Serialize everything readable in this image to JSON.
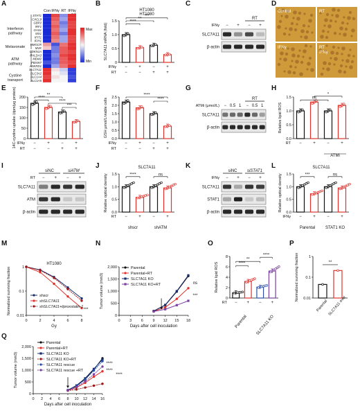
{
  "panels": {
    "A": {
      "letter": "A",
      "col_headers": [
        "Con",
        "IFNγ",
        "RT",
        "IFNγ\n+ RT"
      ],
      "groups": [
        "Interferon pathway",
        "Melavonate",
        "ATM pathway",
        "Cystine transport"
      ],
      "genes": [
        "STAT1",
        "CXCL9",
        "GBP2",
        "IRF1",
        "OAS1",
        "MX1",
        "IFIT1",
        "IFIH1",
        "HMGCR",
        "MVK",
        "CDKN1A",
        "PHLDA3",
        "MDM2",
        "FBXW7",
        "ANKRD1",
        "SLC7A11",
        "SLC3A2",
        "SLC1A4",
        "SLC1A5"
      ],
      "legend_max": "Max",
      "legend_min": "Min",
      "heat": [
        [
          0,
          0.9,
          0.25,
          0.95
        ],
        [
          0,
          0.85,
          0.3,
          0.95
        ],
        [
          0,
          0.8,
          0.2,
          0.9
        ],
        [
          0,
          0.85,
          0.25,
          0.9
        ],
        [
          0,
          0.8,
          0.3,
          0.95
        ],
        [
          0,
          0.85,
          0.2,
          0.95
        ],
        [
          0,
          0.8,
          0.3,
          0.9
        ],
        [
          0,
          0.75,
          0.3,
          0.9
        ],
        [
          0.7,
          0.1,
          0.8,
          0.95
        ],
        [
          0.6,
          0.2,
          0.85,
          0.95
        ],
        [
          0,
          0.2,
          0.85,
          0.9
        ],
        [
          0,
          0.25,
          0.9,
          0.95
        ],
        [
          0,
          0.2,
          0.85,
          0.95
        ],
        [
          0.1,
          0.2,
          0.85,
          0.9
        ],
        [
          0,
          0.3,
          0.8,
          0.95
        ],
        [
          0.95,
          0.55,
          0.4,
          0.05
        ],
        [
          0.95,
          0.5,
          0.45,
          0.05
        ],
        [
          0.9,
          0.55,
          0.5,
          0.1
        ],
        [
          0.95,
          0.5,
          0.5,
          0.05
        ]
      ]
    },
    "B": {
      "letter": "B",
      "title": "HT1080",
      "ylabel": "SLC7A11 mRNA (fold)",
      "yticks": [
        "0",
        "0.5",
        "1.0",
        "1.5"
      ],
      "rows": [
        {
          "label": "IFNγ",
          "values": [
            "−",
            "+",
            "−",
            "+"
          ]
        },
        {
          "label": "RT",
          "values": [
            "−",
            "−",
            "+",
            "+"
          ]
        }
      ],
      "sig": [
        "****",
        "**",
        "***"
      ],
      "values": [
        1.0,
        0.53,
        0.62,
        0.28
      ]
    },
    "C": {
      "letter": "C",
      "treat_label": "IFNγ",
      "treat": [
        "−",
        "+",
        "−",
        "+"
      ],
      "group": "RT",
      "bands": [
        "SLC7A11",
        "β-actin"
      ]
    },
    "D": {
      "letter": "D",
      "labels": [
        "Control",
        "RT",
        "IFNγ",
        "RT\nIFNγ"
      ]
    },
    "E": {
      "letter": "E",
      "ylabel": "14C-cystine uptake (dpm/μg protein)",
      "yticks": [
        "0",
        "50",
        "100",
        "150",
        "200"
      ],
      "rows": [
        {
          "label": "IFNγ",
          "values": [
            "−",
            "+",
            "−",
            "+"
          ]
        },
        {
          "label": "RT",
          "values": [
            "−",
            "−",
            "+",
            "+"
          ]
        }
      ],
      "sig": [
        "****",
        "**",
        "****",
        "***"
      ],
      "values": [
        170,
        150,
        128,
        82
      ]
    },
    "F": {
      "letter": "F",
      "ylabel": "GSH μmol/L/viable cells",
      "yticks": [
        "0.0",
        "0.5",
        "1.0",
        "1.5",
        "2.0",
        "2.5"
      ],
      "rows": [
        {
          "label": "IFNγ",
          "values": [
            "−",
            "+",
            "−",
            "+"
          ]
        },
        {
          "label": "RT",
          "values": [
            "−",
            "−",
            "+",
            "+"
          ]
        }
      ],
      "sig": [
        "****",
        "****"
      ],
      "values": [
        2.2,
        1.85,
        1.5,
        0.75
      ]
    },
    "G": {
      "letter": "G",
      "treat_label": "ATMi (μmol/L)",
      "treat": [
        "−",
        "0.5",
        "1",
        "−",
        "0.5",
        "1"
      ],
      "group": "RT",
      "bands": [
        "SLC7A11",
        "β-actin"
      ]
    },
    "H": {
      "letter": "H",
      "ylabel": "Relative lipid ROS",
      "yticks": [
        "0.0",
        "0.5",
        "1.0",
        "1.5"
      ],
      "rows": [
        {
          "label": "RT",
          "values": [
            "−",
            "+",
            "−",
            "+"
          ]
        }
      ],
      "group": "ATMi",
      "sig": [
        "ns",
        "*"
      ],
      "values": [
        1.0,
        1.32,
        1.0,
        1.2
      ]
    },
    "I": {
      "letter": "I",
      "treat_label": "RT",
      "treat": [
        "−",
        "+",
        "−",
        "+"
      ],
      "groups": [
        "siNC",
        "siATM"
      ],
      "bands": [
        "SLC7A11",
        "ATM",
        "β-actin"
      ]
    },
    "J": {
      "letter": "J",
      "title": "SLC7A11",
      "ylabel": "Relative optical density",
      "yticks": [
        "0.0",
        "0.5",
        "1.0",
        "1.5"
      ],
      "rows": [
        {
          "label": "RT",
          "values": [
            "−",
            "+",
            "−",
            "+"
          ]
        }
      ],
      "groups": [
        "shscr",
        "shATM"
      ],
      "sig": [
        "****",
        "ns"
      ],
      "values": [
        1.0,
        0.58,
        1.0,
        0.95
      ]
    },
    "K": {
      "letter": "K",
      "treat_label": "IFNγ",
      "treat": [
        "−",
        "+",
        "−",
        "+"
      ],
      "groups": [
        "siNC",
        "siSTAT1"
      ],
      "bands": [
        "SLC7A11",
        "STAT1",
        "β-actin"
      ]
    },
    "L": {
      "letter": "L",
      "title": "SLC7A11",
      "ylabel": "Relative optical density",
      "yticks": [
        "0.0",
        "0.5",
        "1.0",
        "1.5"
      ],
      "rows": [
        {
          "label": "IFNγ",
          "values": [
            "−",
            "+",
            "−",
            "+"
          ]
        }
      ],
      "groups": [
        "Parental",
        "STAT1 KO"
      ],
      "sig": [
        "***",
        "ns"
      ],
      "values": [
        1.0,
        0.72,
        1.0,
        0.95
      ]
    },
    "M": {
      "letter": "M",
      "title": "HT1080",
      "ylabel": "Normalized surviving fraction",
      "xlabel": "Gy",
      "xticks": [
        "0",
        "2",
        "4",
        "6",
        "8"
      ],
      "yticks": [
        "0.01",
        "0.1",
        "1"
      ],
      "sig": "***",
      "series": [
        {
          "name": "shscr",
          "values": [
            1,
            0.75,
            0.38,
            0.14,
            0.05
          ]
        },
        {
          "name": "shSLC7A11",
          "values": [
            1,
            0.6,
            0.2,
            0.06,
            0.02
          ]
        },
        {
          "name": "shSLC7A11+liproxstatin-1",
          "values": [
            1,
            0.72,
            0.35,
            0.12,
            0.04
          ]
        }
      ]
    },
    "N": {
      "letter": "N",
      "ylabel": "Tumor volume (mm3)",
      "xlabel": "Days after cell inoculation",
      "xticks": [
        "0",
        "3",
        "6",
        "9",
        "12",
        "15",
        "18"
      ],
      "yticks": [
        "0",
        "500",
        "1,000",
        "1,500",
        "2,000"
      ],
      "sig": [
        "ns",
        "***"
      ],
      "series": [
        {
          "name": "Parental",
          "values": [
            [
              9,
              180
            ],
            [
              12,
              420
            ],
            [
              15,
              980
            ],
            [
              18,
              1620
            ]
          ]
        },
        {
          "name": "Parental+RT",
          "values": [
            [
              9,
              170
            ],
            [
              12,
              330
            ],
            [
              15,
              680
            ],
            [
              18,
              1120
            ]
          ]
        },
        {
          "name": "SLC7A11 KO",
          "values": [
            [
              9,
              175
            ],
            [
              12,
              430
            ],
            [
              15,
              1000
            ],
            [
              18,
              1650
            ]
          ]
        },
        {
          "name": "SLC7A11 KO+RT",
          "values": [
            [
              9,
              160
            ],
            [
              12,
              250
            ],
            [
              15,
              420
            ],
            [
              18,
              600
            ]
          ]
        }
      ]
    },
    "O": {
      "letter": "O",
      "ylabel": "Relative lipid ROS",
      "yticks": [
        "0",
        "2",
        "4",
        "6",
        "8"
      ],
      "rows": [
        {
          "label": "RT",
          "values": [
            "−",
            "+",
            "−",
            "+"
          ]
        }
      ],
      "groups": [
        "Parental",
        "SLC7A11 KO"
      ],
      "sig": [
        "****",
        "**",
        "****"
      ],
      "values": [
        1.0,
        3.2,
        2.1,
        5.2
      ]
    },
    "P": {
      "letter": "P",
      "ylabel": "Normalized surviving fraction",
      "yticks": [
        "0.01",
        "0.1",
        "1"
      ],
      "groups": [
        "Parental",
        "SLC7A11 over"
      ],
      "sig": "**",
      "values": [
        0.045,
        0.21
      ]
    },
    "Q": {
      "letter": "Q",
      "ylabel": "Tumor volume (mm3)",
      "xlabel": "Days after cell inoculation",
      "xticks": [
        "0",
        "2",
        "4",
        "6",
        "8",
        "10",
        "12",
        "14",
        "16"
      ],
      "yticks": [
        "0",
        "500",
        "1,000",
        "1,500",
        "2,000"
      ],
      "sig": [
        "****",
        "****",
        "****"
      ],
      "series": [
        {
          "name": "Parental",
          "values": [
            [
              8,
              150
            ],
            [
              10,
              330
            ],
            [
              12,
              620
            ],
            [
              14,
              1020
            ],
            [
              16,
              1500
            ]
          ]
        },
        {
          "name": "Parental+RT",
          "values": [
            [
              8,
              140
            ],
            [
              10,
              260
            ],
            [
              12,
              460
            ],
            [
              14,
              720
            ],
            [
              16,
              950
            ]
          ]
        },
        {
          "name": "SLC7A11 KO",
          "values": [
            [
              8,
              150
            ],
            [
              10,
              350
            ],
            [
              12,
              650
            ],
            [
              14,
              1050
            ],
            [
              16,
              1450
            ]
          ]
        },
        {
          "name": "SLC7A11 KO+RT",
          "values": [
            [
              8,
              130
            ],
            [
              10,
              180
            ],
            [
              12,
              260
            ],
            [
              14,
              340
            ],
            [
              16,
              420
            ]
          ]
        },
        {
          "name": "SLC7A11 rescue",
          "values": [
            [
              8,
              150
            ],
            [
              10,
              320
            ],
            [
              12,
              600
            ],
            [
              14,
              980
            ],
            [
              16,
              1380
            ]
          ]
        },
        {
          "name": "SLC7A11 rescue\n+RT",
          "values": [
            [
              8,
              140
            ],
            [
              10,
              280
            ],
            [
              12,
              520
            ],
            [
              14,
              820
            ],
            [
              16,
              1150
            ]
          ]
        }
      ]
    }
  },
  "colors": {
    "black": "#111111",
    "red": "#e0322c",
    "blue": "#2b4fa8",
    "purple": "#7a3fa0",
    "darkred": "#a11818",
    "darkblue": "#1a2e6e",
    "heat_low": "#1a2bd6",
    "heat_high": "#e31a1c"
  }
}
